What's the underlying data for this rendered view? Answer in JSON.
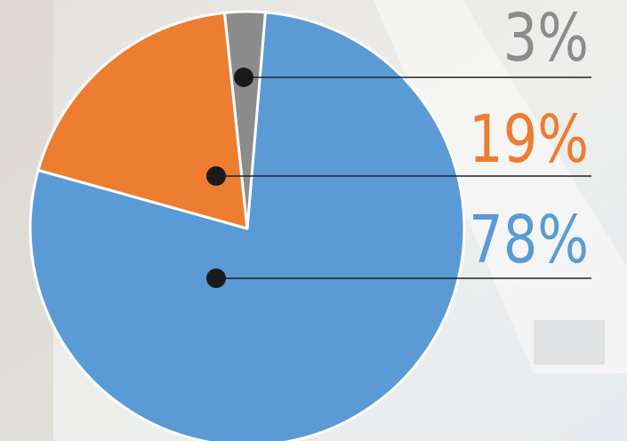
{
  "chart_data": {
    "type": "pie",
    "values": [
      78,
      19,
      3
    ],
    "value_labels": [
      "78%",
      "19%",
      "3%"
    ],
    "colors": [
      "#5b9bd5",
      "#ed7d31",
      "#8c8c8c"
    ]
  }
}
